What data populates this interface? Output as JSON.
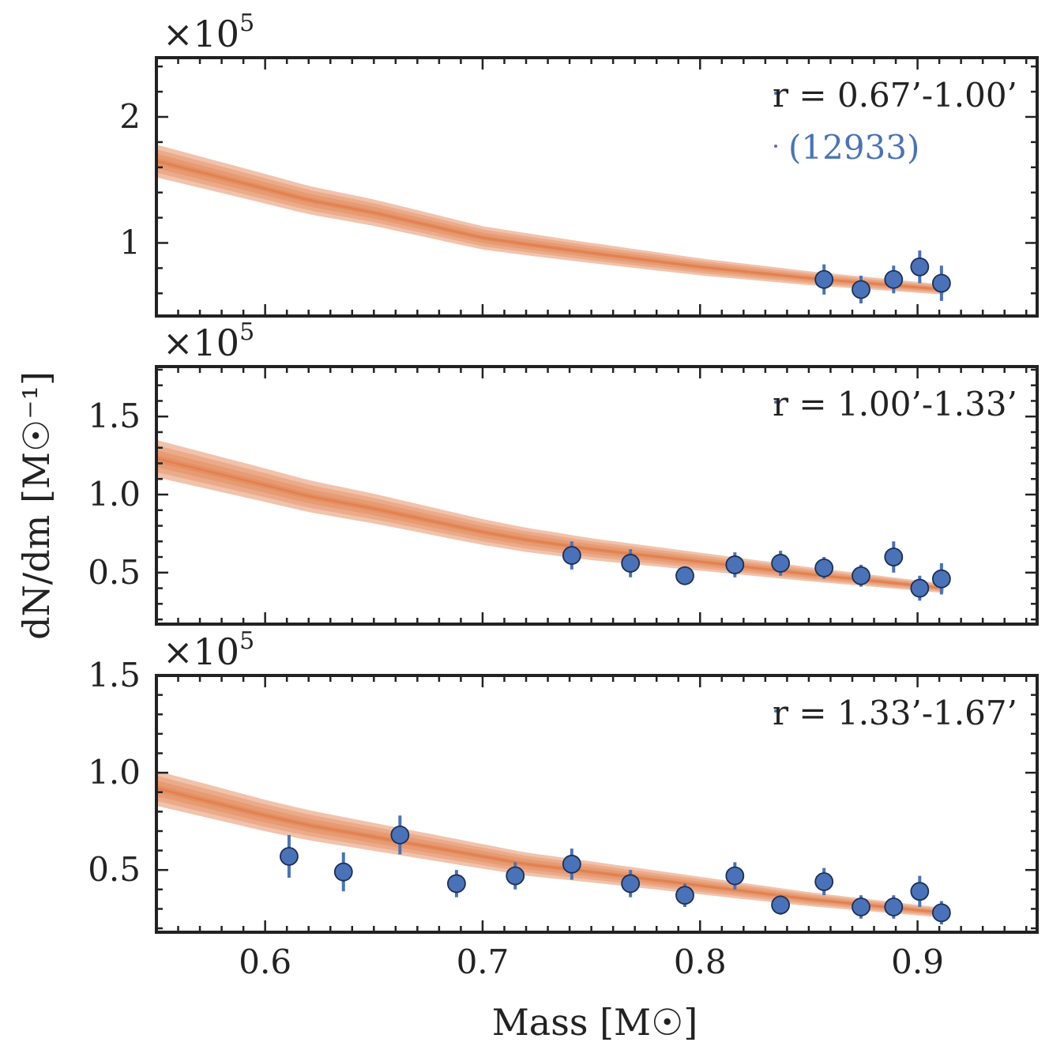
{
  "chart_data": {
    "type": "scatter",
    "xlabel": "Mass [M☉]",
    "ylabel": "dN/dm [M☉⁻¹]",
    "xlim": [
      0.55,
      0.955
    ],
    "xticks": [
      0.6,
      0.7,
      0.8,
      0.9
    ],
    "xtick_labels": [
      "0.6",
      "0.7",
      "0.8",
      "0.9"
    ],
    "colors": {
      "data_face": "#4a72b8",
      "data_edge": "#1a2f55",
      "error_bar": "#4a72b8",
      "model_band": "#e07a45",
      "axis": "#222222",
      "count_text": "#4a72b8"
    },
    "panels": [
      {
        "name": "panel-1",
        "label": "r = 0.67’-1.00’",
        "count": "(12933)",
        "exponent_mantissa": "×10",
        "exponent_power": "5",
        "ylim": [
          0.42,
          2.47
        ],
        "yticks": [
          1,
          2
        ],
        "ytick_labels": [
          "1",
          "2"
        ],
        "model": {
          "x": [
            0.55,
            0.6,
            0.62,
            0.65,
            0.7,
            0.72,
            0.75,
            0.8,
            0.85,
            0.912
          ],
          "median": [
            1.65,
            1.43,
            1.34,
            1.24,
            1.04,
            0.99,
            0.92,
            0.81,
            0.72,
            0.63
          ],
          "halfwidth_start": 0.13,
          "halfwidth_end": 0.04
        },
        "points": [
          {
            "x": 0.857,
            "y": 0.71,
            "err": 0.12
          },
          {
            "x": 0.874,
            "y": 0.63,
            "err": 0.11
          },
          {
            "x": 0.889,
            "y": 0.71,
            "err": 0.11
          },
          {
            "x": 0.901,
            "y": 0.81,
            "err": 0.13
          },
          {
            "x": 0.911,
            "y": 0.68,
            "err": 0.14
          }
        ]
      },
      {
        "name": "panel-2",
        "label": "r = 1.00’-1.33’",
        "count": "",
        "exponent_mantissa": "×10",
        "exponent_power": "5",
        "ylim": [
          0.17,
          1.82
        ],
        "yticks": [
          0.5,
          1.0,
          1.5
        ],
        "ytick_labels": [
          "0.5",
          "1.0",
          "1.5"
        ],
        "model": {
          "x": [
            0.55,
            0.6,
            0.62,
            0.65,
            0.7,
            0.72,
            0.75,
            0.8,
            0.85,
            0.912
          ],
          "median": [
            1.23,
            1.06,
            0.99,
            0.91,
            0.76,
            0.71,
            0.65,
            0.57,
            0.49,
            0.4
          ],
          "halfwidth_start": 0.12,
          "halfwidth_end": 0.03
        },
        "points": [
          {
            "x": 0.741,
            "y": 0.61,
            "err": 0.09
          },
          {
            "x": 0.768,
            "y": 0.56,
            "err": 0.09
          },
          {
            "x": 0.793,
            "y": 0.48,
            "err": 0.06
          },
          {
            "x": 0.816,
            "y": 0.55,
            "err": 0.08
          },
          {
            "x": 0.837,
            "y": 0.56,
            "err": 0.08
          },
          {
            "x": 0.857,
            "y": 0.53,
            "err": 0.07
          },
          {
            "x": 0.874,
            "y": 0.48,
            "err": 0.07
          },
          {
            "x": 0.889,
            "y": 0.6,
            "err": 0.1
          },
          {
            "x": 0.901,
            "y": 0.4,
            "err": 0.08
          },
          {
            "x": 0.911,
            "y": 0.46,
            "err": 0.1
          }
        ]
      },
      {
        "name": "panel-3",
        "label": "r = 1.33’-1.67’",
        "count": "",
        "exponent_mantissa": "×10",
        "exponent_power": "5",
        "ylim": [
          0.18,
          1.5
        ],
        "yticks": [
          0.5,
          1.0,
          1.5
        ],
        "ytick_labels": [
          "0.5",
          "1.0",
          "1.5"
        ],
        "model": {
          "x": [
            0.55,
            0.6,
            0.62,
            0.65,
            0.7,
            0.72,
            0.75,
            0.8,
            0.85,
            0.912
          ],
          "median": [
            0.92,
            0.78,
            0.73,
            0.67,
            0.57,
            0.53,
            0.49,
            0.42,
            0.35,
            0.28
          ],
          "halfwidth_start": 0.09,
          "halfwidth_end": 0.025
        },
        "points": [
          {
            "x": 0.611,
            "y": 0.57,
            "err": 0.11
          },
          {
            "x": 0.636,
            "y": 0.49,
            "err": 0.1
          },
          {
            "x": 0.662,
            "y": 0.68,
            "err": 0.1
          },
          {
            "x": 0.688,
            "y": 0.43,
            "err": 0.07
          },
          {
            "x": 0.715,
            "y": 0.47,
            "err": 0.07
          },
          {
            "x": 0.741,
            "y": 0.53,
            "err": 0.08
          },
          {
            "x": 0.768,
            "y": 0.43,
            "err": 0.07
          },
          {
            "x": 0.793,
            "y": 0.37,
            "err": 0.06
          },
          {
            "x": 0.816,
            "y": 0.47,
            "err": 0.07
          },
          {
            "x": 0.837,
            "y": 0.32,
            "err": 0.05
          },
          {
            "x": 0.857,
            "y": 0.44,
            "err": 0.07
          },
          {
            "x": 0.874,
            "y": 0.31,
            "err": 0.06
          },
          {
            "x": 0.889,
            "y": 0.31,
            "err": 0.06
          },
          {
            "x": 0.901,
            "y": 0.39,
            "err": 0.08
          },
          {
            "x": 0.911,
            "y": 0.28,
            "err": 0.06
          }
        ]
      }
    ]
  }
}
